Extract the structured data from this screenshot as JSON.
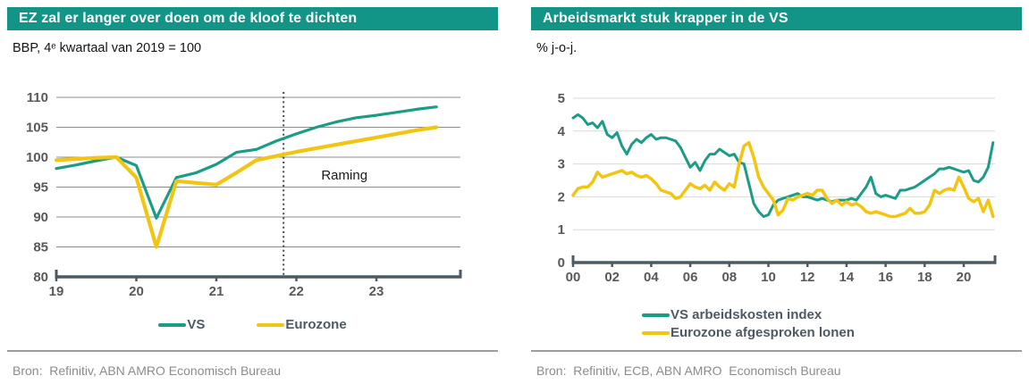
{
  "panels": [
    {
      "title": "EZ zal er langer over doen om de kloof te dichten",
      "subtitle": "BBP, 4ᵉ kwartaal van 2019 = 100",
      "source": "Bron:  Refinitiv, ABN AMRO Economisch Bureau"
    },
    {
      "title": "Arbeidsmarkt stuk krapper in de VS",
      "subtitle": "% j-o-j.",
      "source": "Bron:  Refinitiv, ECB, ABN AMRO  Economisch Bureau"
    }
  ],
  "colors": {
    "banner": "#129487",
    "teal_line": "#1a9c85",
    "yellow_line": "#f3c513",
    "axis": "#4d5a63",
    "tick_text": "#595959",
    "legend_text": "#4d5a63",
    "source_text": "#8c8c8c"
  },
  "chart_data": [
    {
      "type": "line",
      "title": "EZ zal er langer over doen om de kloof te dichten",
      "subtitle_unit": "BBP, 4e kwartaal van 2019 = 100",
      "x_start": 2019.0,
      "x_step": 0.25,
      "xlim": [
        2019.0,
        2024.05
      ],
      "ylim": [
        80,
        110
      ],
      "yticks": [
        80,
        85,
        90,
        95,
        100,
        105,
        110
      ],
      "xticks": [
        2019,
        2020,
        2021,
        2022,
        2023
      ],
      "xtick_labels": [
        "19",
        "20",
        "21",
        "22",
        "23"
      ],
      "grid_color": "#8c8c8c",
      "axis_color": "#4d5a63",
      "vline": {
        "x": 2021.84,
        "style": "dotted",
        "color": "#3c4850"
      },
      "annotation": {
        "text": "Raming",
        "x": 2022.6,
        "y": 96.3
      },
      "legend_position": "bottom-center",
      "series": [
        {
          "name": "VS",
          "color": "#1a9c85",
          "width": 3.2,
          "values": [
            98.1,
            98.7,
            99.4,
            100.0,
            98.6,
            89.8,
            96.6,
            97.4,
            98.8,
            100.8,
            101.3,
            102.7,
            103.9,
            105.0,
            105.9,
            106.6,
            107.0,
            107.5,
            108.0,
            108.4
          ]
        },
        {
          "name": "Eurozone",
          "color": "#f3c513",
          "width": 4.2,
          "values": [
            99.5,
            99.7,
            99.9,
            100.0,
            96.6,
            85.0,
            96.0,
            95.7,
            95.4,
            97.4,
            99.5,
            100.2,
            100.9,
            101.5,
            102.1,
            102.7,
            103.3,
            103.9,
            104.5,
            105.0
          ]
        }
      ]
    },
    {
      "type": "line",
      "title": "Arbeidsmarkt stuk krapper in de VS",
      "subtitle_unit": "% j-o-j.",
      "x_start": 2000.0,
      "x_step": 0.25,
      "xlim": [
        2000.0,
        2021.6
      ],
      "ylim": [
        0,
        5
      ],
      "yticks": [
        0,
        1,
        2,
        3,
        4,
        5
      ],
      "xticks": [
        2000,
        2002,
        2004,
        2006,
        2008,
        2010,
        2012,
        2014,
        2016,
        2018,
        2020
      ],
      "xtick_labels": [
        "00",
        "02",
        "04",
        "06",
        "08",
        "10",
        "12",
        "14",
        "16",
        "18",
        "20"
      ],
      "grid_color": "#d9d9d9",
      "axis_color": "#4d5a63",
      "legend_position": "bottom-left",
      "series": [
        {
          "name": "VS arbeidskosten index",
          "color": "#1a9c85",
          "width": 3,
          "values": [
            4.4,
            4.5,
            4.4,
            4.2,
            4.25,
            4.1,
            4.3,
            3.9,
            3.8,
            3.95,
            3.55,
            3.3,
            3.6,
            3.75,
            3.65,
            3.8,
            3.9,
            3.75,
            3.8,
            3.8,
            3.75,
            3.7,
            3.5,
            3.2,
            2.9,
            3.05,
            2.8,
            3.1,
            3.3,
            3.3,
            3.45,
            3.35,
            3.25,
            3.3,
            3.05,
            3.0,
            2.4,
            1.8,
            1.55,
            1.4,
            1.45,
            1.75,
            1.9,
            1.95,
            2.0,
            2.05,
            2.1,
            2.0,
            2.0,
            1.95,
            1.9,
            1.95,
            1.9,
            1.85,
            1.9,
            1.9,
            1.9,
            1.95,
            1.9,
            2.1,
            2.3,
            2.6,
            2.1,
            2.0,
            2.05,
            2.0,
            1.95,
            2.2,
            2.2,
            2.25,
            2.3,
            2.4,
            2.5,
            2.6,
            2.7,
            2.85,
            2.85,
            2.9,
            2.85,
            2.8,
            2.75,
            2.8,
            2.5,
            2.45,
            2.6,
            2.9,
            3.65
          ]
        },
        {
          "name": "Eurozone afgesproken lonen",
          "color": "#f3c513",
          "width": 3.5,
          "values": [
            2.05,
            2.25,
            2.3,
            2.3,
            2.45,
            2.75,
            2.6,
            2.65,
            2.7,
            2.75,
            2.8,
            2.7,
            2.75,
            2.65,
            2.6,
            2.65,
            2.55,
            2.4,
            2.2,
            2.15,
            2.1,
            1.95,
            2.0,
            2.2,
            2.4,
            2.3,
            2.25,
            2.35,
            2.2,
            2.45,
            2.3,
            2.2,
            2.4,
            2.3,
            3.0,
            3.55,
            3.65,
            3.2,
            2.6,
            2.3,
            2.1,
            1.9,
            1.45,
            1.6,
            1.95,
            1.9,
            2.0,
            2.05,
            2.1,
            2.05,
            2.2,
            2.2,
            1.95,
            1.8,
            1.9,
            1.75,
            1.85,
            1.75,
            1.8,
            1.7,
            1.55,
            1.5,
            1.55,
            1.5,
            1.45,
            1.4,
            1.4,
            1.45,
            1.5,
            1.65,
            1.5,
            1.5,
            1.55,
            1.75,
            2.2,
            2.1,
            2.2,
            2.25,
            2.2,
            2.6,
            2.3,
            1.95,
            1.85,
            1.95,
            1.55,
            1.9,
            1.4
          ]
        }
      ]
    }
  ]
}
